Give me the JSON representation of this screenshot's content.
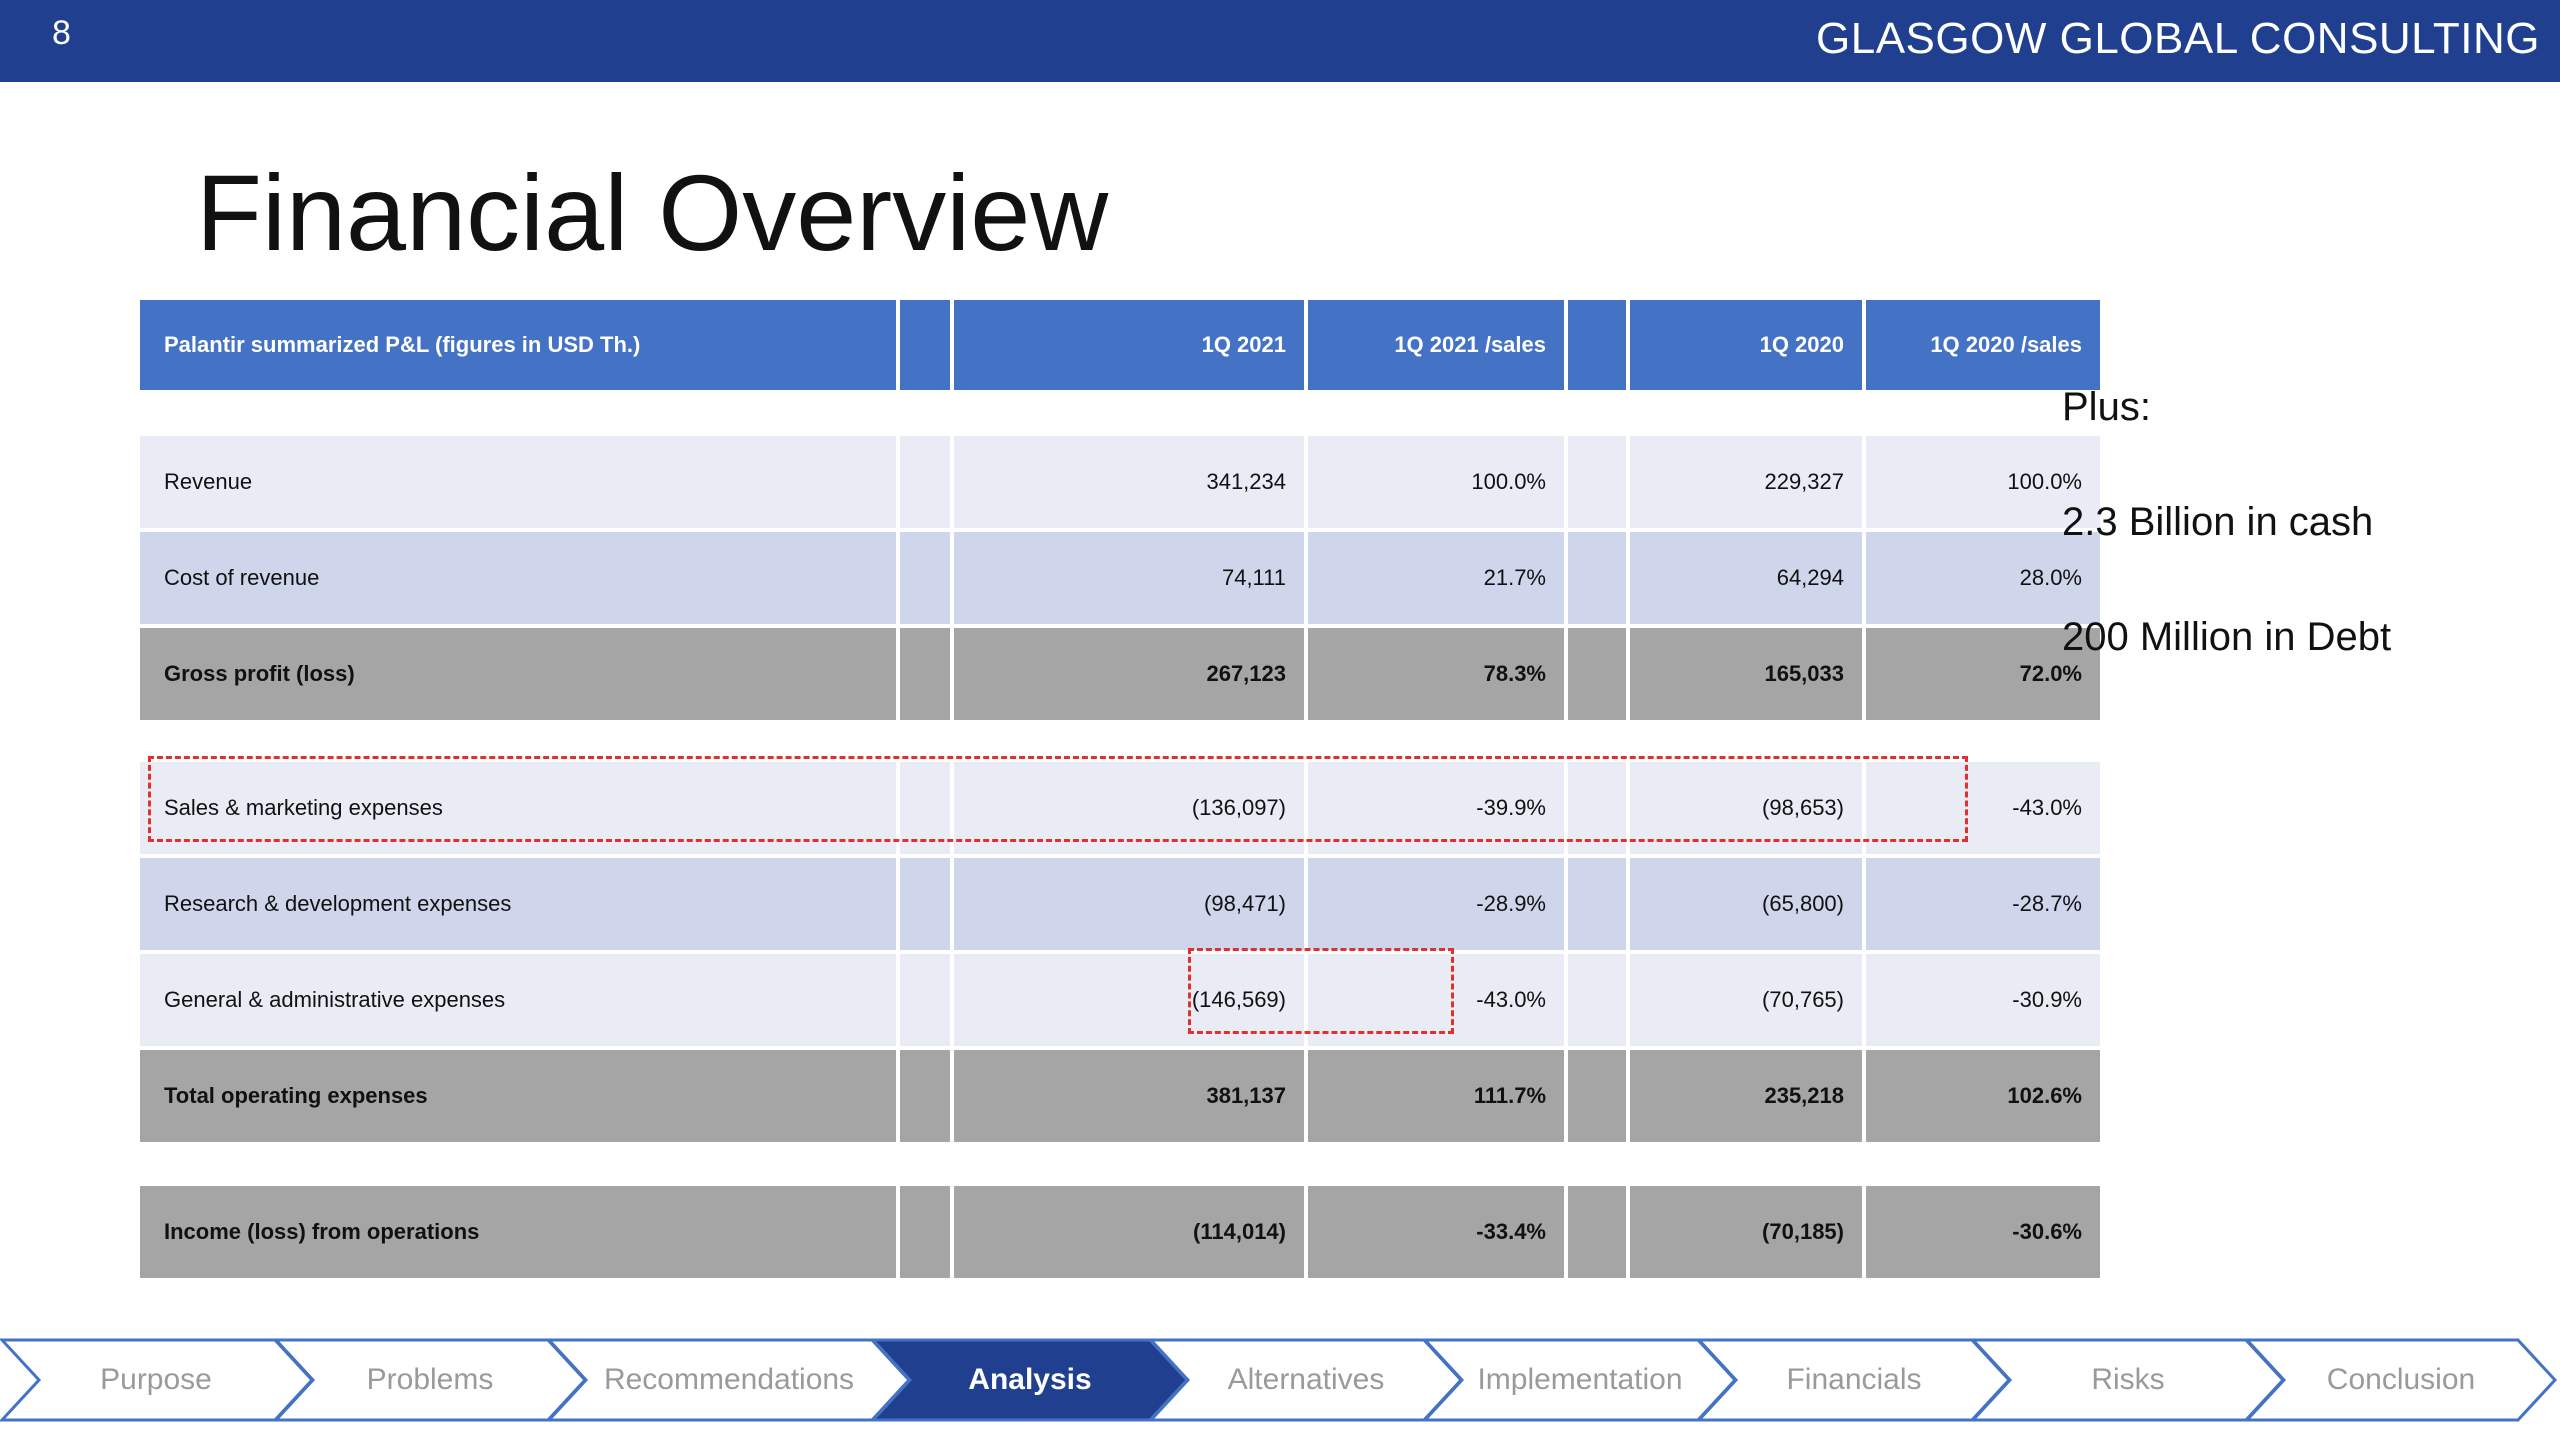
{
  "header": {
    "slide_number": "8",
    "brand": "GLASGOW GLOBAL CONSULTING"
  },
  "title": "Financial Overview",
  "table": {
    "columns": [
      "Palantir summarized P&L (figures in USD Th.)",
      "1Q 2021",
      "1Q 2021 /sales",
      "1Q 2020",
      "1Q 2020 /sales"
    ],
    "rows": [
      {
        "label": "Revenue",
        "q1_2021": "341,234",
        "q1_2021_sales": "100.0%",
        "q1_2020": "229,327",
        "q1_2020_sales": "100.0%"
      },
      {
        "label": "Cost of revenue",
        "q1_2021": "74,111",
        "q1_2021_sales": "21.7%",
        "q1_2020": "64,294",
        "q1_2020_sales": "28.0%"
      },
      {
        "label": "Gross profit (loss)",
        "q1_2021": "267,123",
        "q1_2021_sales": "78.3%",
        "q1_2020": "165,033",
        "q1_2020_sales": "72.0%"
      },
      {
        "label": "Sales & marketing expenses",
        "q1_2021": "(136,097)",
        "q1_2021_sales": "-39.9%",
        "q1_2020": "(98,653)",
        "q1_2020_sales": "-43.0%"
      },
      {
        "label": "Research & development expenses",
        "q1_2021": "(98,471)",
        "q1_2021_sales": "-28.9%",
        "q1_2020": "(65,800)",
        "q1_2020_sales": "-28.7%"
      },
      {
        "label": "General & administrative expenses",
        "q1_2021": "(146,569)",
        "q1_2021_sales": "-43.0%",
        "q1_2020": "(70,765)",
        "q1_2020_sales": "-30.9%"
      },
      {
        "label": "Total operating expenses",
        "q1_2021": "381,137",
        "q1_2021_sales": "111.7%",
        "q1_2020": "235,218",
        "q1_2020_sales": "102.6%"
      },
      {
        "label": "Income (loss) from operations",
        "q1_2021": "(114,014)",
        "q1_2021_sales": "-33.4%",
        "q1_2020": "(70,185)",
        "q1_2020_sales": "-30.6%"
      }
    ]
  },
  "notes": {
    "plus": "Plus:",
    "cash": "2.3 Billion in cash",
    "debt": "200 Million in Debt"
  },
  "colors": {
    "header_bar": "#203f8f",
    "table_header": "#4472c4",
    "row_light": "#e9ebf5",
    "row_mid": "#cfd5ea",
    "row_dark": "#a5a5a5",
    "highlight": "#e0312f"
  },
  "nav": {
    "items": [
      "Purpose",
      "Problems",
      "Recommendations",
      "Analysis",
      "Alternatives",
      "Implementation",
      "Financials",
      "Risks",
      "Conclusion"
    ],
    "active": "Analysis"
  }
}
